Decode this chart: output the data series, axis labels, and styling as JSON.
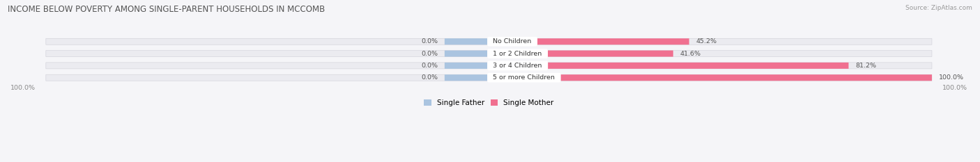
{
  "title": "INCOME BELOW POVERTY AMONG SINGLE-PARENT HOUSEHOLDS IN MCCOMB",
  "source": "Source: ZipAtlas.com",
  "categories": [
    "No Children",
    "1 or 2 Children",
    "3 or 4 Children",
    "5 or more Children"
  ],
  "single_father_values": [
    0.0,
    0.0,
    0.0,
    0.0
  ],
  "single_mother_values": [
    45.2,
    41.6,
    81.2,
    100.0
  ],
  "single_father_color": "#aac4e0",
  "single_mother_color": "#f07090",
  "bar_bg_color": "#ebebf0",
  "title_color": "#555555",
  "text_color": "#555555",
  "axis_label_color": "#888888",
  "max_value": 100.0,
  "figsize": [
    14.06,
    2.33
  ],
  "dpi": 100,
  "bg_color": "#f5f5f8"
}
